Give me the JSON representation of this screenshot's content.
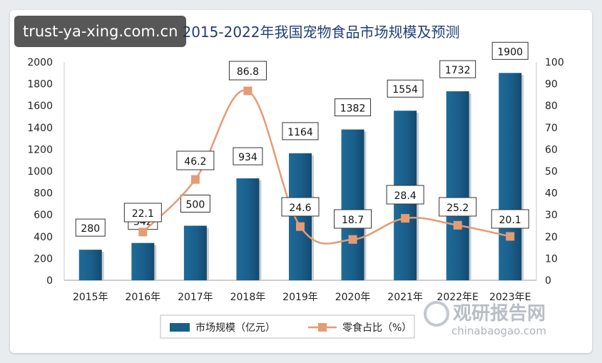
{
  "watermark": "trust-ya-xing.com.cn",
  "chart_data": {
    "type": "bar",
    "title": "2015-2022年我国宠物食品市场规模及预测",
    "categories": [
      "2015年",
      "2016年",
      "2017年",
      "2018年",
      "2019年",
      "2020年",
      "2021年",
      "2022年E",
      "2023年E"
    ],
    "series": [
      {
        "name": "市场规模（亿元）",
        "type": "bar",
        "axis": "left",
        "color": "#1a5e8a",
        "values": [
          280,
          342,
          500,
          934,
          1164,
          1382,
          1554,
          1732,
          1900
        ]
      },
      {
        "name": "零食占比（%）",
        "type": "line",
        "axis": "right",
        "color": "#e59b74",
        "values": [
          null,
          22.1,
          46.2,
          86.8,
          24.6,
          18.7,
          28.4,
          25.2,
          20.1
        ]
      }
    ],
    "y_left": {
      "min": 0,
      "max": 2000,
      "ticks": [
        0,
        200,
        400,
        600,
        800,
        1000,
        1200,
        1400,
        1600,
        1800,
        2000
      ]
    },
    "y_right": {
      "min": 0,
      "max": 100,
      "ticks": [
        0,
        10,
        20,
        30,
        40,
        50,
        60,
        70,
        80,
        90,
        100
      ]
    },
    "legend_position": "bottom-center"
  },
  "brand": {
    "cn": "观研报告网",
    "en": "chinabaogao.com"
  }
}
